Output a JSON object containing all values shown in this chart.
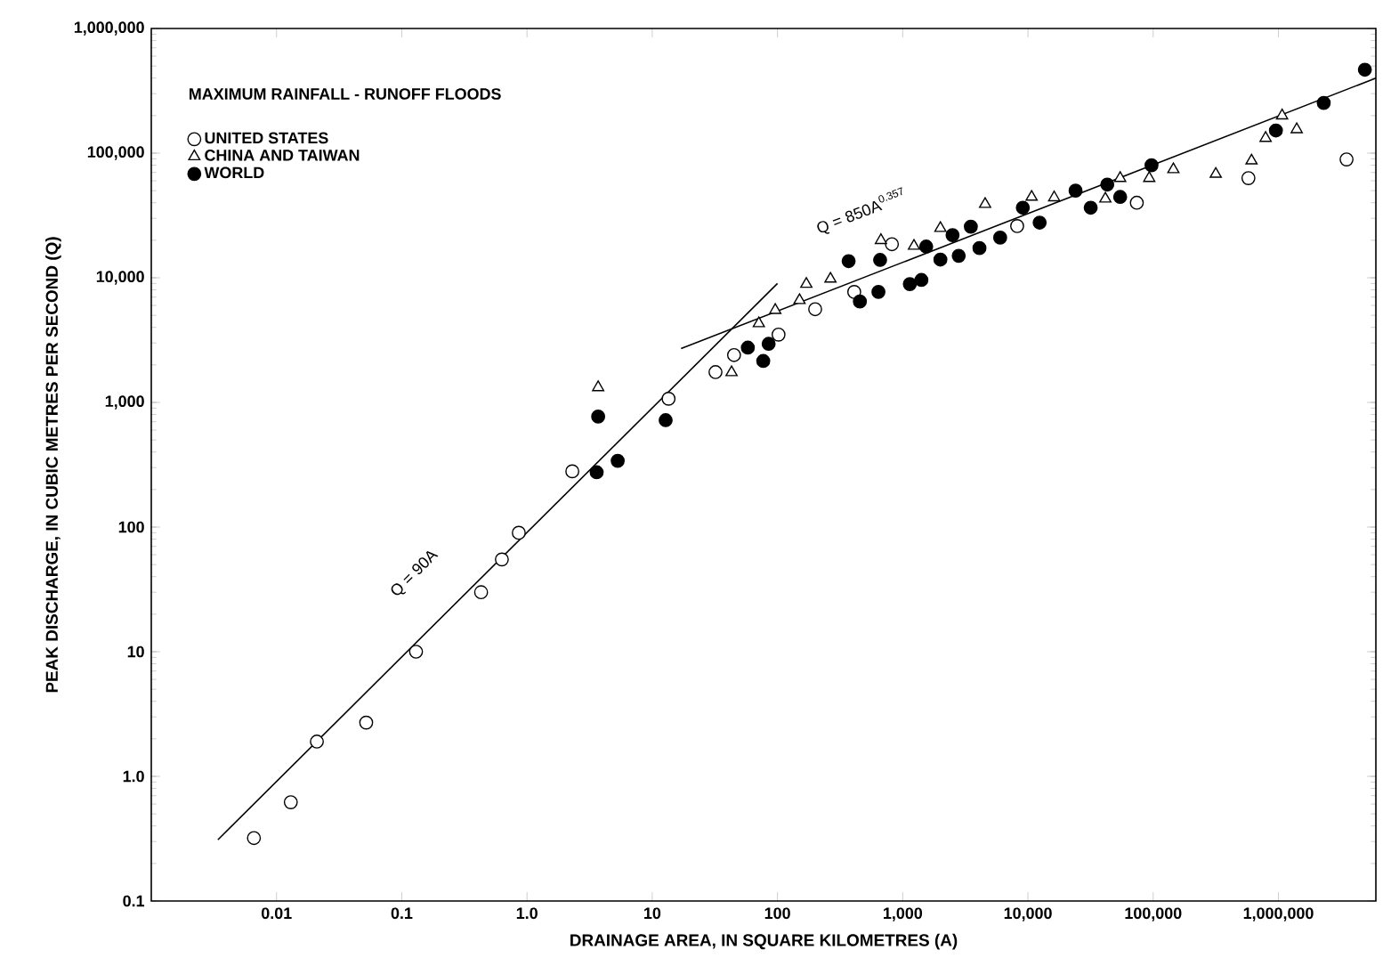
{
  "chart_data": {
    "type": "scatter",
    "title": "MAXIMUM RAINFALL - RUNOFF FLOODS",
    "xlabel": "DRAINAGE AREA, IN SQUARE KILOMETRES (A)",
    "ylabel": "PEAK DISCHARGE, IN CUBIC METRES PER SECOND (Q)",
    "log": "xy",
    "grid": false,
    "legend": "top left",
    "xlim": [
      0.001,
      6000000
    ],
    "ylim": [
      0.1,
      1000000
    ],
    "xticks": [
      0.01,
      0.1,
      {
        "value": 1,
        "label": "1.0"
      },
      10,
      100,
      {
        "value": 1000,
        "label": "1,000"
      },
      {
        "value": 10000,
        "label": "10,000"
      },
      {
        "value": 100000,
        "label": "100,000"
      },
      {
        "value": 1000000,
        "label": "1,000,000"
      }
    ],
    "yticks": [
      0.1,
      {
        "value": 1,
        "label": "1.0"
      },
      10,
      100,
      {
        "value": 1000,
        "label": "1,000"
      },
      {
        "value": 10000,
        "label": "10,000"
      },
      {
        "value": 100000,
        "label": "100,000"
      },
      {
        "value": 1000000,
        "label": "1,000,000"
      }
    ],
    "series": [
      {
        "name": "UNITED STATES",
        "marker": "circle",
        "color": "#ffffff",
        "x": [
          0.0066,
          0.013,
          0.021,
          0.052,
          0.13,
          0.43,
          0.63,
          0.86,
          2.3,
          13.5,
          32,
          45,
          102,
          200,
          410,
          820,
          8200,
          74000,
          576000,
          3500000
        ],
        "values": [
          0.32,
          0.62,
          1.9,
          2.7,
          10,
          30,
          55,
          90,
          280,
          1070,
          1750,
          2400,
          3500,
          5600,
          7700,
          18600,
          26000,
          40000,
          63000,
          89000
        ]
      },
      {
        "name": "CHINA AND TAIWAN",
        "marker": "triangle",
        "color": "#ffffff",
        "x": [
          3.7,
          43,
          71,
          96,
          150,
          170,
          265,
          670,
          1230,
          2000,
          4550,
          10700,
          16200,
          41500,
          54500,
          93000,
          145000,
          316000,
          610000,
          790000,
          1070000,
          1400000
        ],
        "values": [
          1320,
          1740,
          4300,
          5500,
          6600,
          8900,
          9800,
          20000,
          18000,
          25000,
          39000,
          44500,
          44000,
          43000,
          63000,
          63000,
          74000,
          68000,
          87000,
          132000,
          200000,
          155000
        ]
      },
      {
        "name": "WORLD",
        "marker": "circle",
        "color": "#000000",
        "x": [
          3.6,
          3.7,
          5.3,
          12.8,
          58,
          77,
          85,
          370,
          455,
          640,
          660,
          1140,
          1410,
          1540,
          2000,
          2500,
          2800,
          3500,
          4100,
          6000,
          9100,
          12400,
          24000,
          31700,
          43000,
          54500,
          97000,
          955000,
          2300000,
          4900000
        ],
        "values": [
          275,
          770,
          340,
          720,
          2750,
          2150,
          2950,
          13600,
          6450,
          7700,
          13900,
          8900,
          9600,
          17800,
          14000,
          22000,
          15000,
          25700,
          17300,
          21000,
          36500,
          27700,
          50000,
          36500,
          56000,
          44500,
          80000,
          152000,
          253000,
          467000
        ]
      },
      {
        "type": "line",
        "marker": "none",
        "line_style": "solid",
        "color": "#000000",
        "x": [
          0.0034,
          100
        ],
        "values": [
          0.31,
          9000
        ]
      },
      {
        "type": "line",
        "marker": "none",
        "line_style": "solid",
        "color": "#000000",
        "x": [
          17,
          6000000
        ],
        "values": [
          2700,
          400000
        ]
      }
    ],
    "annotations": [
      "Q = 90A",
      "Q = 850A$^{0.357}$"
    ]
  }
}
